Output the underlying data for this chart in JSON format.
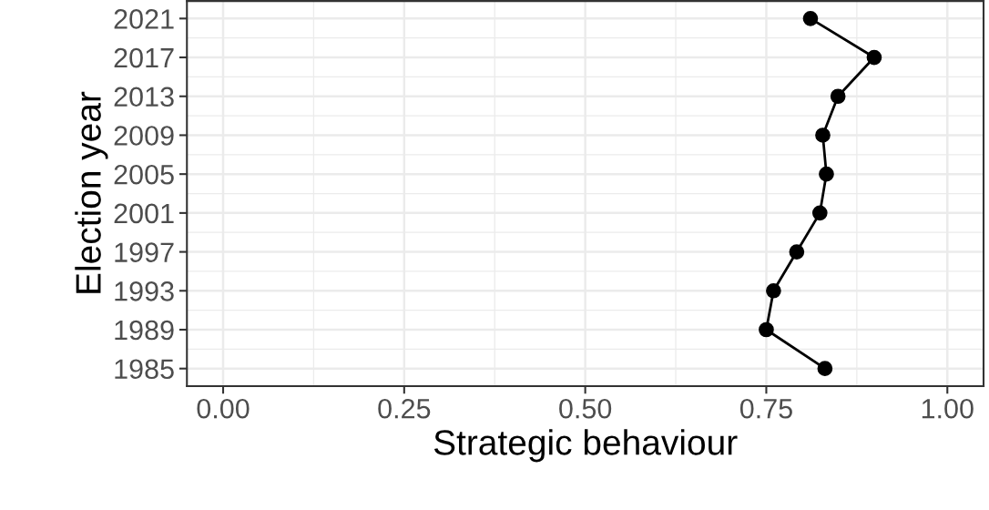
{
  "chart_data": {
    "type": "line",
    "orientation": "horizontal",
    "xlabel": "Strategic behaviour",
    "ylabel": "Election year",
    "x": [
      1985,
      1989,
      1993,
      1997,
      2001,
      2005,
      2009,
      2013,
      2017,
      2021
    ],
    "series": [
      {
        "color": "#000000",
        "values": [
          0.831,
          0.75,
          0.76,
          0.792,
          0.824,
          0.833,
          0.828,
          0.849,
          0.899,
          0.811
        ]
      }
    ],
    "xlim": [
      -0.05,
      1.05
    ],
    "xticks": [
      {
        "value": 0,
        "label": "0.00"
      },
      {
        "value": 0.25,
        "label": "0.25"
      },
      {
        "value": 0.5,
        "label": "0.50"
      },
      {
        "value": 0.75,
        "label": "0.75"
      },
      {
        "value": 1,
        "label": "1.00"
      }
    ],
    "ylim": [
      1983.2,
      2022.8
    ],
    "yticks": [
      1985,
      1989,
      1993,
      1997,
      2001,
      2005,
      2009,
      2013,
      2017,
      2021
    ],
    "grid": true,
    "marker": "circle",
    "line_style": "solid"
  }
}
